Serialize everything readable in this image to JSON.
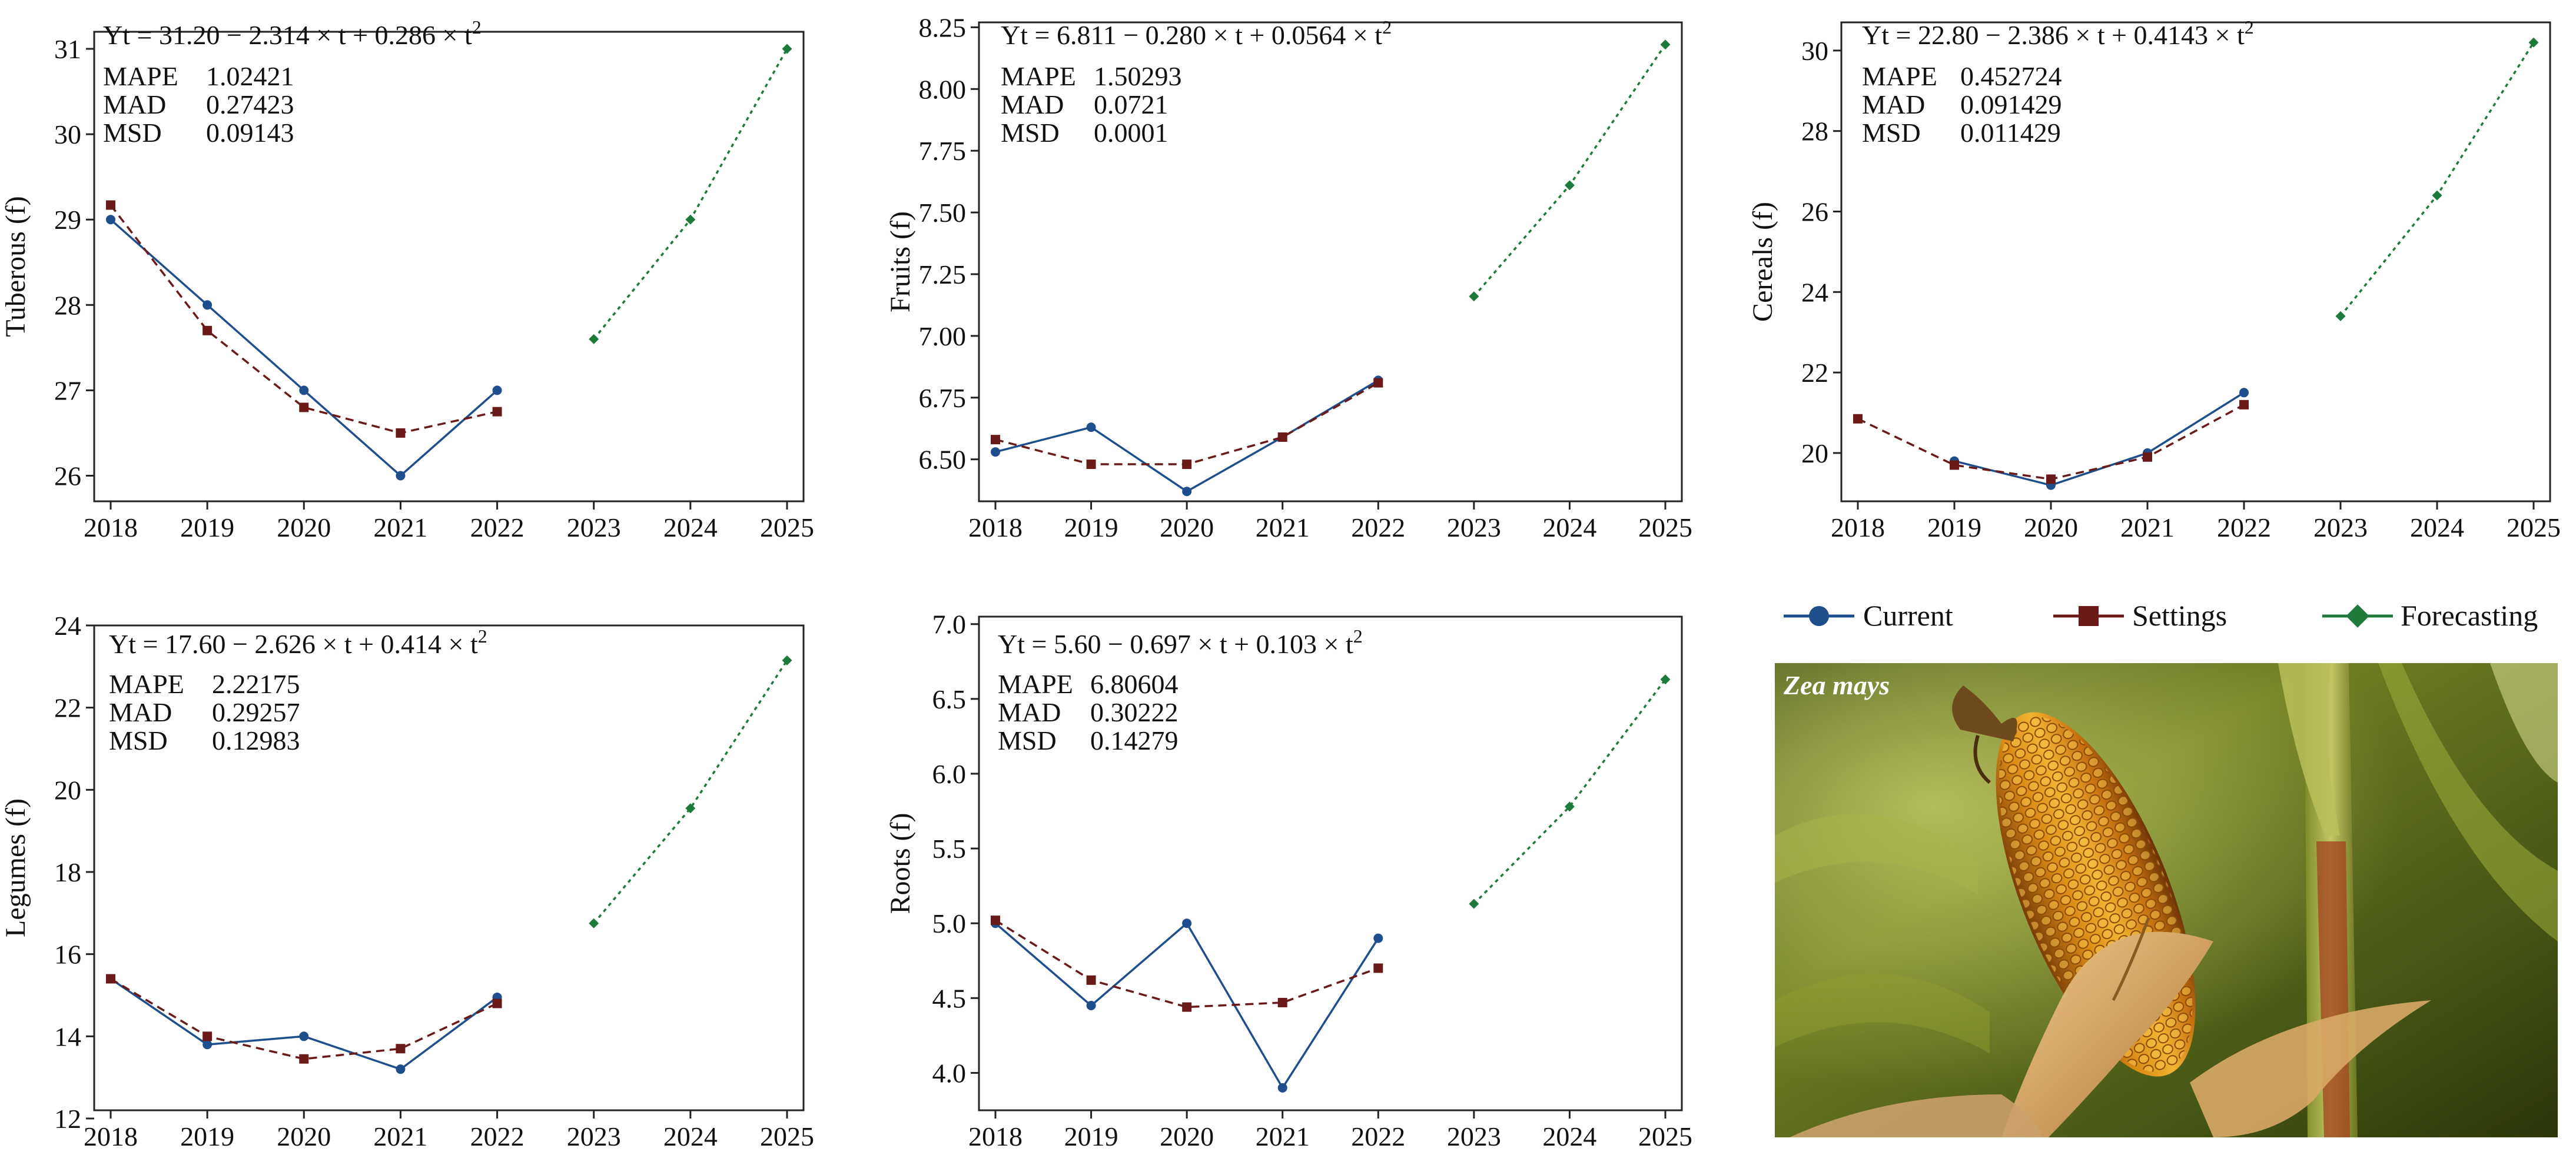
{
  "colors": {
    "current": "#1f4e8c",
    "settings": "#6b1a1a",
    "forecasting": "#1e7a3a"
  },
  "legend": {
    "current_label": "Current",
    "settings_label": "Settings",
    "forecasting_label": "Forecasting"
  },
  "photo": {
    "caption": "Zea mays",
    "icon": "corn-cob-photo"
  },
  "chart_data": [
    {
      "type": "line",
      "id": "tuberous",
      "ylabel": "Tuberous (f)",
      "equation": "Yt = 31.20 − 2.314 × t + 0.286 × t",
      "equation_exp": "2",
      "stats": [
        {
          "name": "MAPE",
          "value": "1.02421"
        },
        {
          "name": "MAD",
          "value": "0.27423"
        },
        {
          "name": "MSD",
          "value": "0.09143"
        }
      ],
      "x_ticks": [
        "2018",
        "2019",
        "2020",
        "2021",
        "2022",
        "2023",
        "2024",
        "2025"
      ],
      "ylim": [
        25.7,
        31.2
      ],
      "y_ticks": [
        26,
        27,
        28,
        29,
        30,
        31
      ],
      "y_tick_labels": [
        "26",
        "27",
        "28",
        "29",
        "30",
        "31"
      ],
      "series": [
        {
          "name": "Current",
          "x": [
            2018,
            2019,
            2020,
            2021,
            2022
          ],
          "values": [
            29.0,
            28.0,
            27.0,
            26.0,
            27.0
          ]
        },
        {
          "name": "Settings",
          "x": [
            2018,
            2019,
            2020,
            2021,
            2022
          ],
          "values": [
            29.17,
            27.7,
            26.8,
            26.5,
            26.75
          ]
        },
        {
          "name": "Forecasting",
          "x": [
            2023,
            2024,
            2025
          ],
          "values": [
            27.6,
            29.0,
            31.0
          ]
        }
      ]
    },
    {
      "type": "line",
      "id": "fruits",
      "ylabel": "Fruits (f)",
      "equation": "Yt = 6.811 − 0.280 × t + 0.0564 × t",
      "equation_exp": "2",
      "stats": [
        {
          "name": "MAPE",
          "value": "1.50293"
        },
        {
          "name": "MAD",
          "value": "0.0721"
        },
        {
          "name": "MSD",
          "value": "0.0001"
        }
      ],
      "x_ticks": [
        "2018",
        "2019",
        "2020",
        "2021",
        "2022",
        "2023",
        "2024",
        "2025"
      ],
      "ylim": [
        6.33,
        8.27
      ],
      "y_ticks": [
        6.5,
        6.75,
        7.0,
        7.25,
        7.5,
        7.75,
        8.0,
        8.25
      ],
      "y_tick_labels": [
        "6.50",
        "6.75",
        "7.00",
        "7.25",
        "7.50",
        "7.75",
        "8.00",
        "8.25"
      ],
      "series": [
        {
          "name": "Current",
          "x": [
            2018,
            2019,
            2020,
            2021,
            2022
          ],
          "values": [
            6.53,
            6.63,
            6.37,
            6.59,
            6.82
          ]
        },
        {
          "name": "Settings",
          "x": [
            2018,
            2019,
            2020,
            2021,
            2022
          ],
          "values": [
            6.58,
            6.48,
            6.48,
            6.59,
            6.81
          ]
        },
        {
          "name": "Forecasting",
          "x": [
            2023,
            2024,
            2025
          ],
          "values": [
            7.16,
            7.61,
            8.18
          ]
        }
      ]
    },
    {
      "type": "line",
      "id": "cereals",
      "ylabel": "Cereals (f)",
      "equation": "Yt = 22.80 − 2.386 × t + 0.4143 × t",
      "equation_exp": "2",
      "stats": [
        {
          "name": "MAPE",
          "value": "0.452724"
        },
        {
          "name": "MAD",
          "value": "0.091429"
        },
        {
          "name": "MSD",
          "value": "0.011429"
        }
      ],
      "x_ticks": [
        "2018",
        "2019",
        "2020",
        "2021",
        "2022",
        "2023",
        "2024",
        "2025"
      ],
      "ylim": [
        18.8,
        30.7
      ],
      "y_ticks": [
        20,
        22,
        24,
        26,
        28,
        30
      ],
      "y_tick_labels": [
        "20",
        "22",
        "24",
        "26",
        "28",
        "30"
      ],
      "series": [
        {
          "name": "Current",
          "x": [
            2019,
            2020,
            2021,
            2022
          ],
          "values": [
            19.8,
            19.2,
            20.0,
            21.5
          ]
        },
        {
          "name": "Settings",
          "x": [
            2018,
            2019,
            2020,
            2021,
            2022
          ],
          "values": [
            20.85,
            19.7,
            19.35,
            19.9,
            21.2
          ]
        },
        {
          "name": "Forecasting",
          "x": [
            2023,
            2024,
            2025
          ],
          "values": [
            23.4,
            26.4,
            30.2
          ]
        }
      ]
    },
    {
      "type": "line",
      "id": "legumes",
      "ylabel": "Legumes (f)",
      "equation": "Yt = 17.60 − 2.626 × t + 0.414 × t",
      "equation_exp": "2",
      "stats": [
        {
          "name": "MAPE",
          "value": "2.22175"
        },
        {
          "name": "MAD",
          "value": "0.29257"
        },
        {
          "name": "MSD",
          "value": "0.12983"
        }
      ],
      "x_ticks": [
        "2018",
        "2019",
        "2020",
        "2021",
        "2022",
        "2023",
        "2024",
        "2025"
      ],
      "ylim": [
        12.2,
        24.0
      ],
      "y_ticks": [
        12,
        14,
        16,
        18,
        20,
        22,
        24
      ],
      "y_tick_labels": [
        "12",
        "14",
        "16",
        "18",
        "20",
        "22",
        "24"
      ],
      "series": [
        {
          "name": "Current",
          "x": [
            2018,
            2019,
            2020,
            2021,
            2022
          ],
          "values": [
            15.4,
            13.8,
            14.0,
            13.2,
            14.95
          ]
        },
        {
          "name": "Settings",
          "x": [
            2018,
            2019,
            2020,
            2021,
            2022
          ],
          "values": [
            15.4,
            14.0,
            13.45,
            13.7,
            14.8
          ]
        },
        {
          "name": "Forecasting",
          "x": [
            2023,
            2024,
            2025
          ],
          "values": [
            16.75,
            19.55,
            23.15
          ]
        }
      ]
    },
    {
      "type": "line",
      "id": "roots",
      "ylabel": "Roots (f)",
      "equation": "Yt = 5.60 − 0.697 × t + 0.103 × t",
      "equation_exp": "2",
      "stats": [
        {
          "name": "MAPE",
          "value": "6.80604"
        },
        {
          "name": "MAD",
          "value": "0.30222"
        },
        {
          "name": "MSD",
          "value": "0.14279"
        }
      ],
      "x_ticks": [
        "2018",
        "2019",
        "2020",
        "2021",
        "2022",
        "2023",
        "2024",
        "2025"
      ],
      "ylim": [
        3.75,
        7.05
      ],
      "y_ticks": [
        4.0,
        4.5,
        5.0,
        5.5,
        6.0,
        6.5,
        7.0
      ],
      "y_tick_labels": [
        "4.0",
        "4.5",
        "5.0",
        "5.5",
        "6.0",
        "6.5",
        "7.0"
      ],
      "series": [
        {
          "name": "Current",
          "x": [
            2018,
            2019,
            2020,
            2021,
            2022
          ],
          "values": [
            5.0,
            4.45,
            5.0,
            3.9,
            4.9
          ]
        },
        {
          "name": "Settings",
          "x": [
            2018,
            2019,
            2020,
            2021,
            2022
          ],
          "values": [
            5.02,
            4.62,
            4.44,
            4.47,
            4.7
          ]
        },
        {
          "name": "Forecasting",
          "x": [
            2023,
            2024,
            2025
          ],
          "values": [
            5.13,
            5.78,
            6.63
          ]
        }
      ]
    }
  ]
}
